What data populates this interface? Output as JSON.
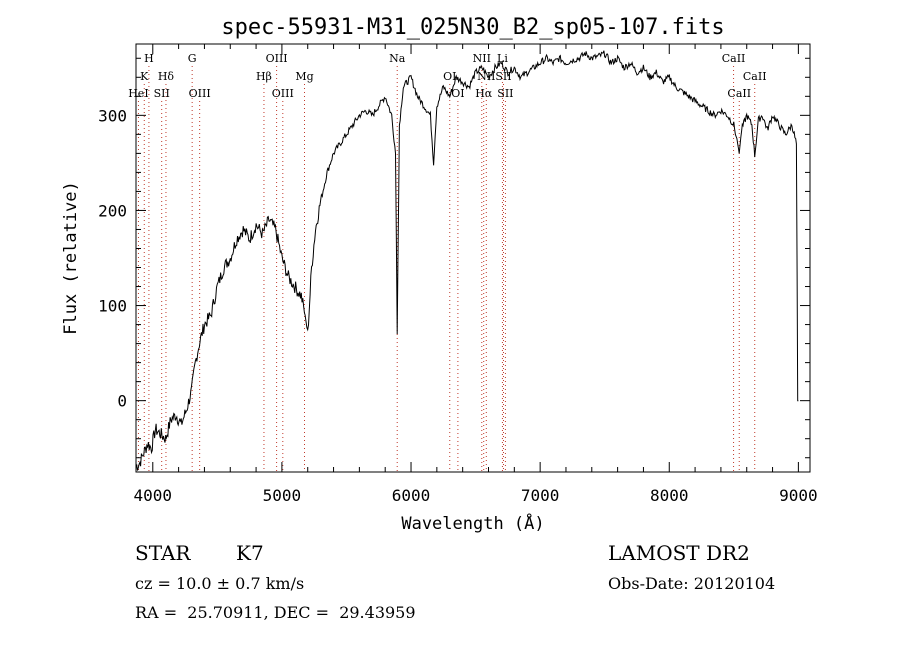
{
  "chart_data": {
    "type": "line",
    "title": "spec-55931-M31_025N30_B2_sp05-107.fits",
    "xlabel": "Wavelength (Å)",
    "ylabel": "Flux (relative)",
    "xlim": [
      3870,
      9090
    ],
    "ylim": [
      -75,
      375
    ],
    "xticks": [
      4000,
      5000,
      6000,
      7000,
      8000,
      9000
    ],
    "yticks": [
      0,
      100,
      200,
      300
    ],
    "grid": false,
    "series": [
      {
        "color": "#000000",
        "x": [
          3870,
          3900,
          3930,
          3960,
          3990,
          4020,
          4060,
          4100,
          4140,
          4180,
          4220,
          4260,
          4300,
          4330,
          4360,
          4400,
          4450,
          4500,
          4550,
          4600,
          4650,
          4700,
          4750,
          4800,
          4850,
          4900,
          4950,
          5000,
          5050,
          5100,
          5150,
          5180,
          5200,
          5230,
          5260,
          5300,
          5350,
          5400,
          5450,
          5500,
          5550,
          5600,
          5650,
          5700,
          5750,
          5800,
          5850,
          5880,
          5893,
          5910,
          5940,
          6000,
          6050,
          6100,
          6150,
          6175,
          6200,
          6250,
          6300,
          6350,
          6400,
          6450,
          6500,
          6550,
          6600,
          6650,
          6700,
          6750,
          6800,
          6850,
          6900,
          6950,
          7000,
          7050,
          7100,
          7150,
          7200,
          7250,
          7300,
          7350,
          7400,
          7450,
          7500,
          7550,
          7600,
          7650,
          7700,
          7750,
          7800,
          7850,
          7900,
          7950,
          8000,
          8050,
          8100,
          8150,
          8200,
          8250,
          8300,
          8350,
          8400,
          8450,
          8500,
          8530,
          8542,
          8560,
          8600,
          8640,
          8662,
          8690,
          8720,
          8760,
          8800,
          8850,
          8900,
          8950,
          8985,
          8995,
          9000
        ],
        "y": [
          -70,
          -65,
          -55,
          -45,
          -50,
          -30,
          -35,
          -40,
          -20,
          -15,
          -25,
          -10,
          10,
          40,
          60,
          80,
          90,
          120,
          140,
          150,
          170,
          180,
          170,
          185,
          175,
          190,
          180,
          150,
          130,
          120,
          110,
          90,
          70,
          140,
          180,
          210,
          240,
          260,
          270,
          280,
          290,
          300,
          305,
          300,
          310,
          320,
          300,
          260,
          70,
          290,
          330,
          340,
          320,
          310,
          300,
          250,
          310,
          330,
          320,
          340,
          335,
          330,
          345,
          350,
          340,
          350,
          355,
          345,
          350,
          340,
          345,
          350,
          355,
          360,
          355,
          360,
          355,
          358,
          360,
          365,
          360,
          362,
          365,
          355,
          360,
          350,
          355,
          345,
          350,
          340,
          345,
          335,
          340,
          330,
          325,
          320,
          315,
          310,
          305,
          300,
          305,
          300,
          290,
          270,
          260,
          285,
          300,
          290,
          258,
          295,
          300,
          285,
          300,
          290,
          280,
          290,
          270,
          0,
          0
        ]
      }
    ],
    "line_markers": [
      {
        "label": "H",
        "x": 3970,
        "row": 1
      },
      {
        "label": "K",
        "x": 3934,
        "row": 2
      },
      {
        "label": "Hδ",
        "x": 4102,
        "row": 2
      },
      {
        "label": "G",
        "x": 4305,
        "row": 1
      },
      {
        "label": "HeI",
        "x": 3889,
        "row": 3
      },
      {
        "label": "SII",
        "x": 4069,
        "row": 3
      },
      {
        "label": "OIII",
        "x": 4363,
        "row": 3
      },
      {
        "label": "OIII",
        "x": 4959,
        "row": 1
      },
      {
        "label": "Hβ",
        "x": 4861,
        "row": 2
      },
      {
        "label": "OIII",
        "x": 5007,
        "row": 3
      },
      {
        "label": "Mg",
        "x": 5175,
        "row": 2
      },
      {
        "label": "Na",
        "x": 5893,
        "row": 1
      },
      {
        "label": "OI",
        "x": 6300,
        "row": 2
      },
      {
        "label": "OI",
        "x": 6363,
        "row": 3
      },
      {
        "label": "NII",
        "x": 6548,
        "row": 1
      },
      {
        "label": "Li",
        "x": 6708,
        "row": 1
      },
      {
        "label": "NII",
        "x": 6583,
        "row": 2
      },
      {
        "label": "SII",
        "x": 6716,
        "row": 2
      },
      {
        "label": "Hα",
        "x": 6563,
        "row": 3
      },
      {
        "label": "SII",
        "x": 6731,
        "row": 3
      },
      {
        "label": "CaII",
        "x": 8498,
        "row": 1
      },
      {
        "label": "CaII",
        "x": 8662,
        "row": 2
      },
      {
        "label": "CaII",
        "x": 8542,
        "row": 3
      }
    ]
  },
  "info": {
    "object_class": "STAR",
    "subclass": "K7",
    "survey": "LAMOST DR2",
    "cz": "cz = 10.0 ± 0.7 km/s",
    "obs_date": "Obs-Date: 20120104",
    "coords": "RA =  25.70911, DEC =  29.43959"
  }
}
